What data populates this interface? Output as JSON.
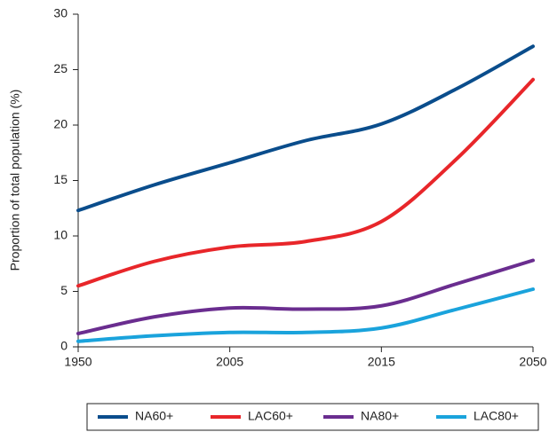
{
  "chart_data": {
    "type": "line",
    "y_label": "Proportion of total population (%)",
    "categories": [
      "1950",
      null,
      "2005",
      null,
      "2015",
      null,
      "2050"
    ],
    "series": [
      {
        "name": "NA60+",
        "color": "#0a4d8c",
        "values": [
          12.3,
          14.6,
          16.6,
          18.6,
          20.1,
          23.3,
          27.1
        ]
      },
      {
        "name": "LAC60+",
        "color": "#e8262a",
        "values": [
          5.5,
          7.7,
          9.0,
          9.5,
          11.3,
          17.0,
          24.1
        ]
      },
      {
        "name": "NA80+",
        "color": "#6a2d8f",
        "values": [
          1.2,
          2.7,
          3.5,
          3.4,
          3.7,
          5.7,
          7.8
        ]
      },
      {
        "name": "LAC80+",
        "color": "#1aa3dc",
        "values": [
          0.5,
          1.0,
          1.3,
          1.3,
          1.7,
          3.4,
          5.2
        ]
      }
    ],
    "ylim": [
      0,
      30
    ],
    "yticks": [
      0,
      5,
      10,
      15,
      20,
      25,
      30
    ],
    "grid": false,
    "legend": "bottom"
  }
}
